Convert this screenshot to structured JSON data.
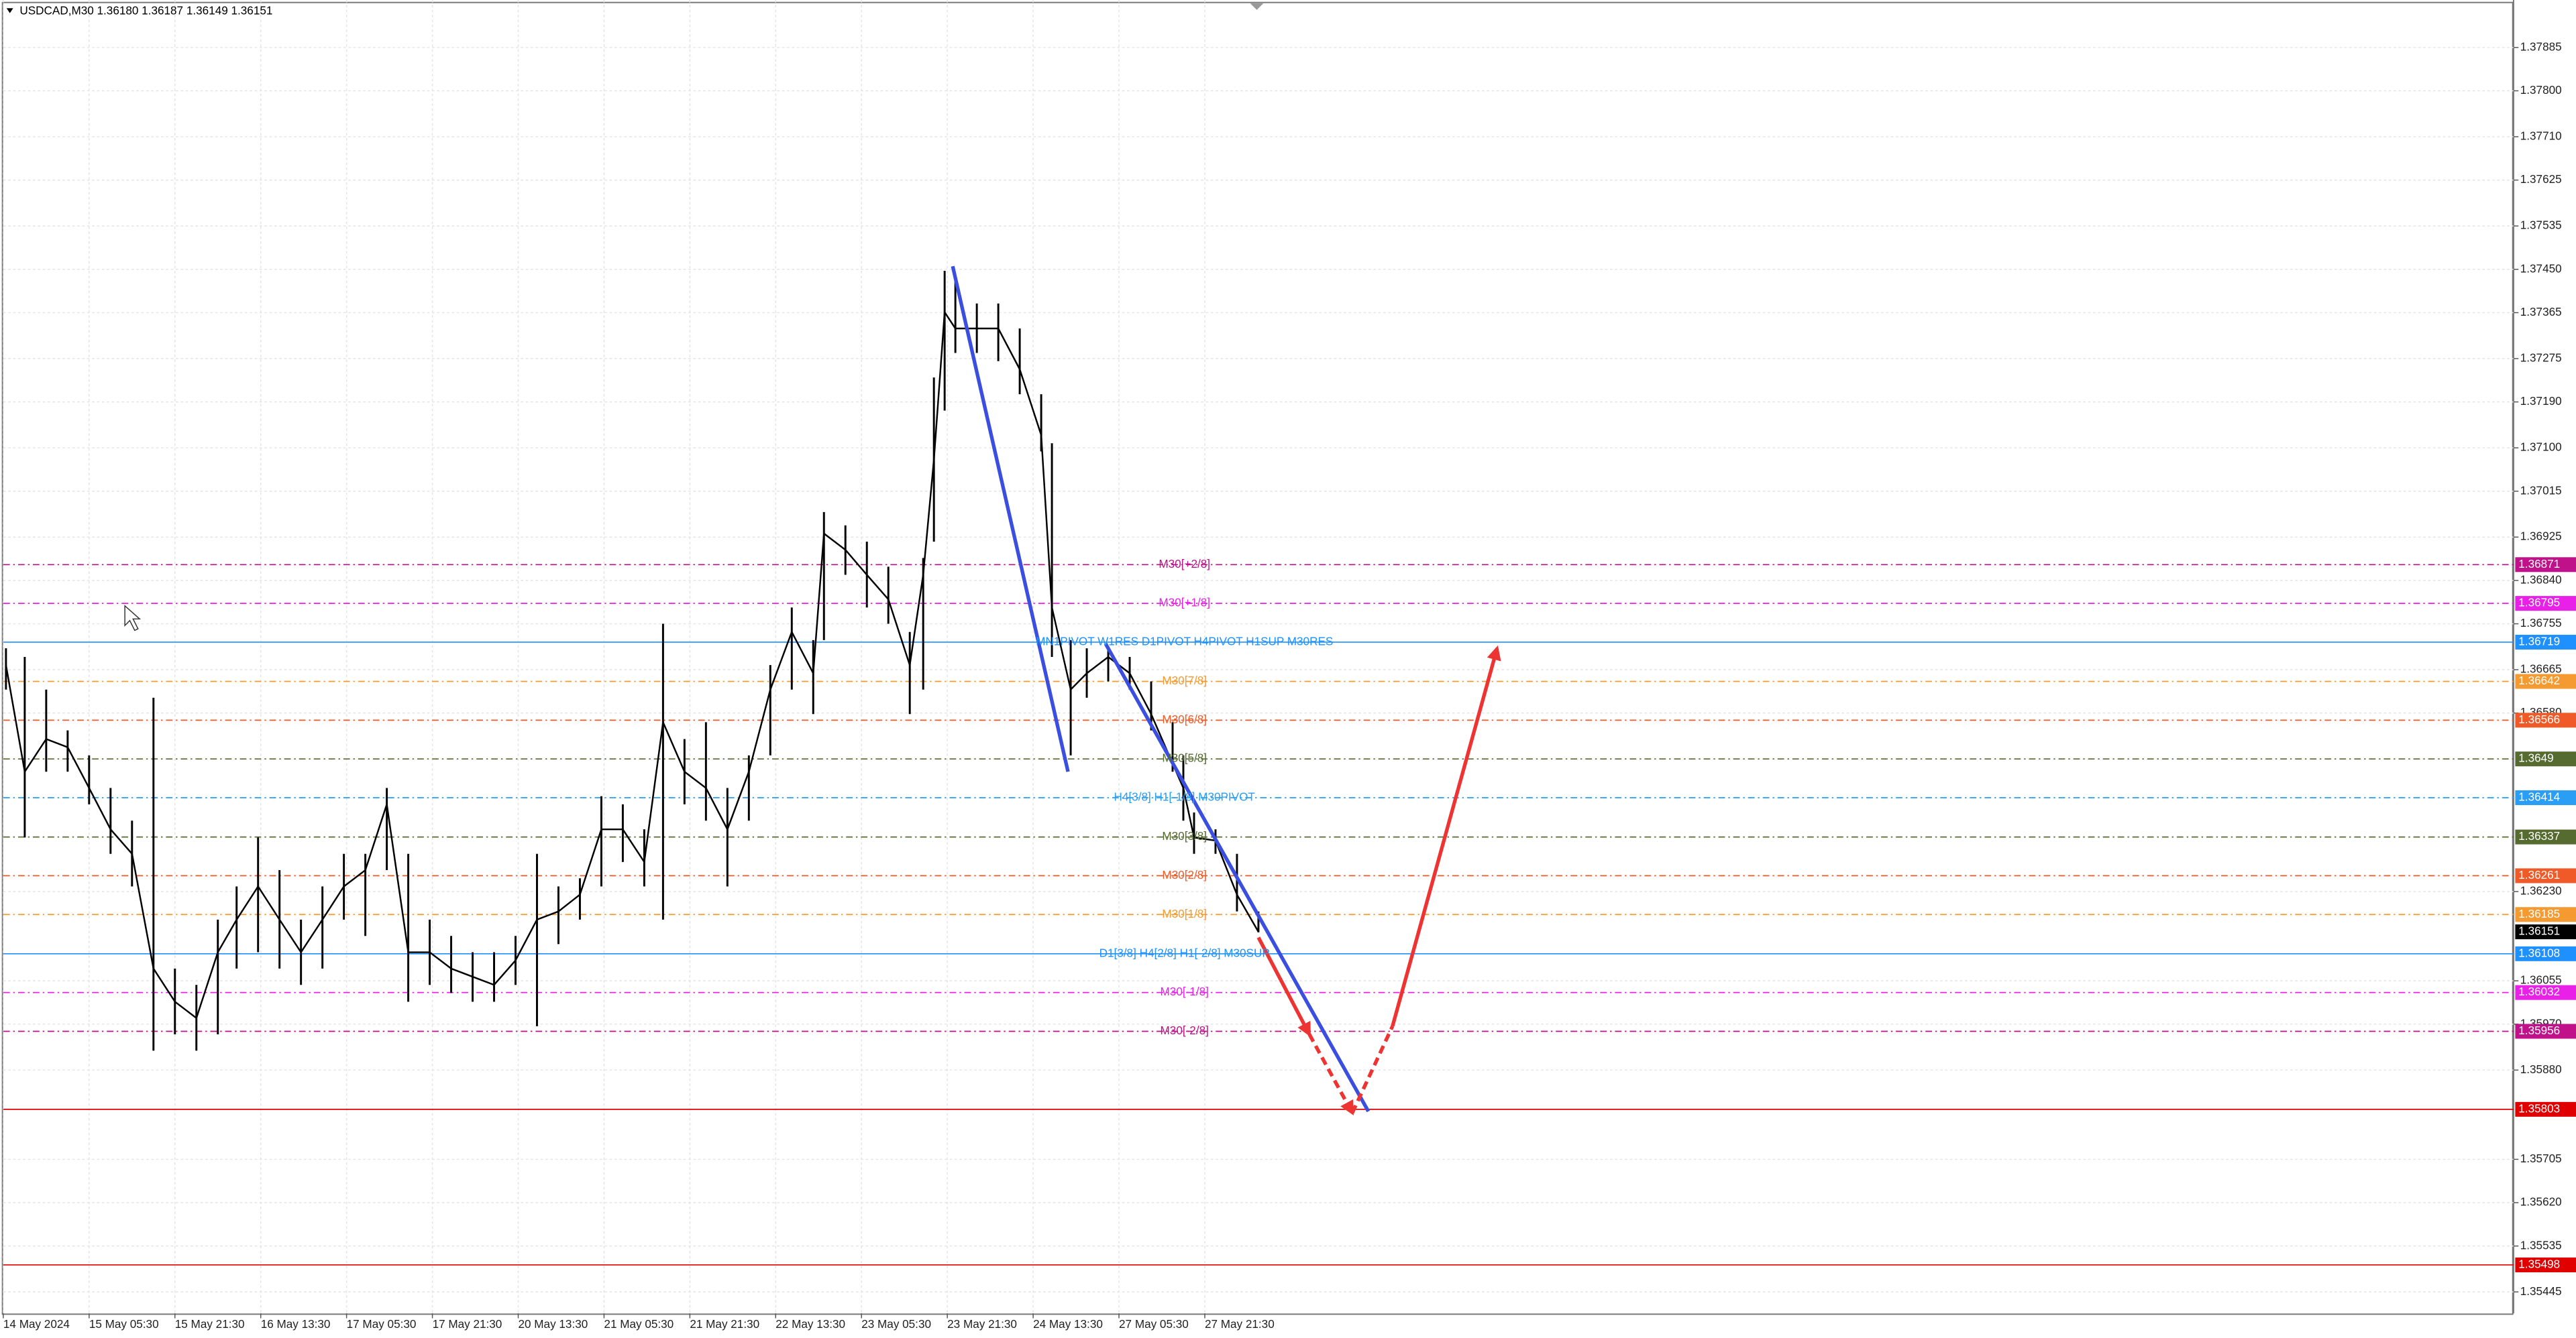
{
  "chart_data": {
    "type": "hilo",
    "title": "USDCAD,M30  1.36180 1.36187 1.36149 1.36151",
    "xlim": [
      0,
      936
    ],
    "ylim": [
      1.35403,
      1.37978
    ],
    "grid": true,
    "xticks": [
      {
        "value": 0,
        "label": "14 May 2024"
      },
      {
        "value": 32,
        "label": "15 May 05:30"
      },
      {
        "value": 64,
        "label": "15 May 21:30"
      },
      {
        "value": 96,
        "label": "16 May 13:30"
      },
      {
        "value": 128,
        "label": "17 May 05:30"
      },
      {
        "value": 160,
        "label": "17 May 21:30"
      },
      {
        "value": 192,
        "label": "20 May 13:30"
      },
      {
        "value": 224,
        "label": "21 May 05:30"
      },
      {
        "value": 256,
        "label": "21 May 21:30"
      },
      {
        "value": 288,
        "label": "22 May 13:30"
      },
      {
        "value": 320,
        "label": "23 May 05:30"
      },
      {
        "value": 352,
        "label": "23 May 21:30"
      },
      {
        "value": 384,
        "label": "24 May 13:30"
      },
      {
        "value": 416,
        "label": "27 May 05:30"
      },
      {
        "value": 448,
        "label": "27 May 21:30"
      }
    ],
    "yticks": [
      {
        "value": 1.37885,
        "label": "1.37885"
      },
      {
        "value": 1.378,
        "label": "1.37800"
      },
      {
        "value": 1.3771,
        "label": "1.37710"
      },
      {
        "value": 1.37625,
        "label": "1.37625"
      },
      {
        "value": 1.37535,
        "label": "1.37535"
      },
      {
        "value": 1.3745,
        "label": "1.37450"
      },
      {
        "value": 1.37365,
        "label": "1.37365"
      },
      {
        "value": 1.37275,
        "label": "1.37275"
      },
      {
        "value": 1.3719,
        "label": "1.37190"
      },
      {
        "value": 1.371,
        "label": "1.37100"
      },
      {
        "value": 1.37015,
        "label": "1.37015"
      },
      {
        "value": 1.36925,
        "label": "1.36925"
      },
      {
        "value": 1.3684,
        "label": "1.36840"
      },
      {
        "value": 1.36755,
        "label": "1.36755"
      },
      {
        "value": 1.36665,
        "label": "1.36665"
      },
      {
        "value": 1.3658,
        "label": "1.36580"
      },
      {
        "value": 1.3623,
        "label": "1.36230"
      },
      {
        "value": 1.36055,
        "label": "1.36055"
      },
      {
        "value": 1.3597,
        "label": "1.35970"
      },
      {
        "value": 1.3588,
        "label": "1.35880"
      },
      {
        "value": 1.35705,
        "label": "1.35705"
      },
      {
        "value": 1.3562,
        "label": "1.35620"
      },
      {
        "value": 1.35535,
        "label": "1.35535"
      },
      {
        "value": 1.35445,
        "label": "1.35445"
      }
    ],
    "color": "#000000",
    "x": [
      1,
      8,
      16,
      24,
      32,
      40,
      48,
      56,
      64,
      72,
      80,
      87,
      95,
      103,
      111,
      119,
      127,
      135,
      143,
      151,
      159,
      167,
      175,
      183,
      191,
      199,
      207,
      215,
      223,
      231,
      239,
      246,
      254,
      262,
      270,
      278,
      286,
      294,
      302,
      306,
      314,
      322,
      330,
      338,
      343,
      347,
      351,
      355,
      363,
      371,
      379,
      387,
      391,
      398,
      404,
      412,
      420,
      428,
      436,
      440,
      444,
      452,
      460,
      468
    ],
    "high": [
      1.36707,
      1.3669,
      1.36626,
      1.36546,
      1.36497,
      1.36433,
      1.36369,
      1.3661,
      1.36079,
      1.36047,
      1.36175,
      1.3624,
      1.36336,
      1.36272,
      1.36175,
      1.3624,
      1.36304,
      1.36304,
      1.36433,
      1.36304,
      1.36175,
      1.36143,
      1.36111,
      1.36111,
      1.36143,
      1.36304,
      1.3624,
      1.36256,
      1.36417,
      1.36401,
      1.36352,
      1.36755,
      1.36529,
      1.36562,
      1.36433,
      1.36497,
      1.36674,
      1.36787,
      1.36723,
      1.36974,
      1.36948,
      1.36916,
      1.36867,
      1.36739,
      1.36884,
      1.37238,
      1.37447,
      1.37431,
      1.37383,
      1.37383,
      1.37334,
      1.37205,
      1.37109,
      1.36723,
      1.36707,
      1.36707,
      1.3669,
      1.36642,
      1.36562,
      1.36497,
      1.36385,
      1.36352,
      1.36304,
      1.36191
    ],
    "low": [
      1.36626,
      1.36336,
      1.36465,
      1.36465,
      1.36401,
      1.36304,
      1.3624,
      1.35918,
      1.3595,
      1.35918,
      1.3595,
      1.36079,
      1.36111,
      1.36079,
      1.36047,
      1.36079,
      1.36175,
      1.36143,
      1.36272,
      1.36014,
      1.36047,
      1.36031,
      1.36014,
      1.36014,
      1.36047,
      1.35966,
      1.36127,
      1.36175,
      1.3624,
      1.36288,
      1.3624,
      1.36175,
      1.36401,
      1.36369,
      1.3624,
      1.36369,
      1.36497,
      1.36626,
      1.36578,
      1.36723,
      1.36851,
      1.36787,
      1.36755,
      1.36578,
      1.36626,
      1.36916,
      1.37173,
      1.37286,
      1.37286,
      1.3727,
      1.37205,
      1.37093,
      1.3669,
      1.36497,
      1.3661,
      1.36642,
      1.36626,
      1.36546,
      1.36465,
      1.36369,
      1.36304,
      1.36304,
      1.36191,
      1.3615
    ],
    "close": [
      1.36674,
      1.36465,
      1.36529,
      1.36513,
      1.36433,
      1.36352,
      1.36304,
      1.36079,
      1.36014,
      1.35982,
      1.36111,
      1.36175,
      1.3624,
      1.36175,
      1.36111,
      1.36175,
      1.3624,
      1.36272,
      1.36401,
      1.36111,
      1.36111,
      1.36079,
      1.36063,
      1.36047,
      1.36095,
      1.36175,
      1.36191,
      1.36224,
      1.36352,
      1.36352,
      1.36288,
      1.36562,
      1.36465,
      1.36433,
      1.36352,
      1.36465,
      1.36626,
      1.36739,
      1.36658,
      1.36932,
      1.369,
      1.36851,
      1.36803,
      1.36674,
      1.36851,
      1.37077,
      1.37366,
      1.37334,
      1.37334,
      1.37334,
      1.37254,
      1.37125,
      1.36787,
      1.36626,
      1.36658,
      1.3669,
      1.36658,
      1.36578,
      1.36481,
      1.36433,
      1.36336,
      1.3633,
      1.36224,
      1.36151
    ],
    "levels": [
      {
        "price": 1.36871,
        "color": "#c0108a",
        "style": "dashdot",
        "label": "M30[+2/8]"
      },
      {
        "price": 1.36795,
        "color": "#e820e8",
        "style": "dashdot",
        "label": "M30[+1/8]"
      },
      {
        "price": 1.36719,
        "color": "#1e90ff",
        "style": "solid",
        "label": "MN1PIVOT W1RES D1PIVOT H4PIVOT H1SUP M30RES"
      },
      {
        "price": 1.36642,
        "color": "#f59a30",
        "style": "dashdot",
        "label": "M30[7/8]"
      },
      {
        "price": 1.36566,
        "color": "#f05a28",
        "style": "dashdot",
        "label": "M30[6/8]"
      },
      {
        "price": 1.3649,
        "color": "#556b2f",
        "style": "dashdot",
        "label": "M30[5/8]"
      },
      {
        "price": 1.36414,
        "color": "#2a9df4",
        "style": "dashdot",
        "label": "H4[3/8] H1[-1/8] M30PIVOT"
      },
      {
        "price": 1.36337,
        "color": "#556b2f",
        "style": "dashdot",
        "label": "M30[3/8]"
      },
      {
        "price": 1.36261,
        "color": "#f05a28",
        "style": "dashdot",
        "label": "M30[2/8]"
      },
      {
        "price": 1.36185,
        "color": "#f59a30",
        "style": "dashdot",
        "label": "M30[1/8]"
      },
      {
        "price": 1.36151,
        "color": "#000000",
        "style": "none"
      },
      {
        "price": 1.36108,
        "color": "#1e90ff",
        "style": "solid",
        "label": "D1[3/8] H4[2/8] H1[-2/8] M30SUP"
      },
      {
        "price": 1.36032,
        "color": "#e820e8",
        "style": "dashdot",
        "label": "M30[-1/8]"
      },
      {
        "price": 1.35956,
        "color": "#c0108a",
        "style": "dashdot",
        "label": "M30[-2/8]"
      },
      {
        "price": 1.35803,
        "color": "#e00000",
        "style": "solid"
      },
      {
        "price": 1.35498,
        "color": "#e00000",
        "style": "solid"
      }
    ],
    "trend_lines": [
      {
        "color": "#3a4fe0",
        "style": "solid",
        "arrow": false,
        "x": [
          354,
          397
        ],
        "y": [
          1.37456,
          1.36465
        ]
      },
      {
        "color": "#3a4fe0",
        "style": "solid",
        "arrow": false,
        "x": [
          411,
          509
        ],
        "y": [
          1.36716,
          1.35799
        ]
      },
      {
        "color": "#ee3333",
        "style": "solid",
        "arrow": true,
        "x": [
          468,
          487
        ],
        "y": [
          1.3614,
          1.3595
        ]
      },
      {
        "color": "#ee3333",
        "style": "dashed",
        "arrow": true,
        "x": [
          487,
          503
        ],
        "y": [
          1.3595,
          1.35796
        ]
      },
      {
        "color": "#ee3333",
        "style": "dashed",
        "arrow": false,
        "x": [
          503,
          518
        ],
        "y": [
          1.35796,
          1.35966
        ]
      },
      {
        "color": "#ee3333",
        "style": "solid",
        "arrow": true,
        "x": [
          518,
          557
        ],
        "y": [
          1.35966,
          1.36707
        ]
      }
    ]
  }
}
